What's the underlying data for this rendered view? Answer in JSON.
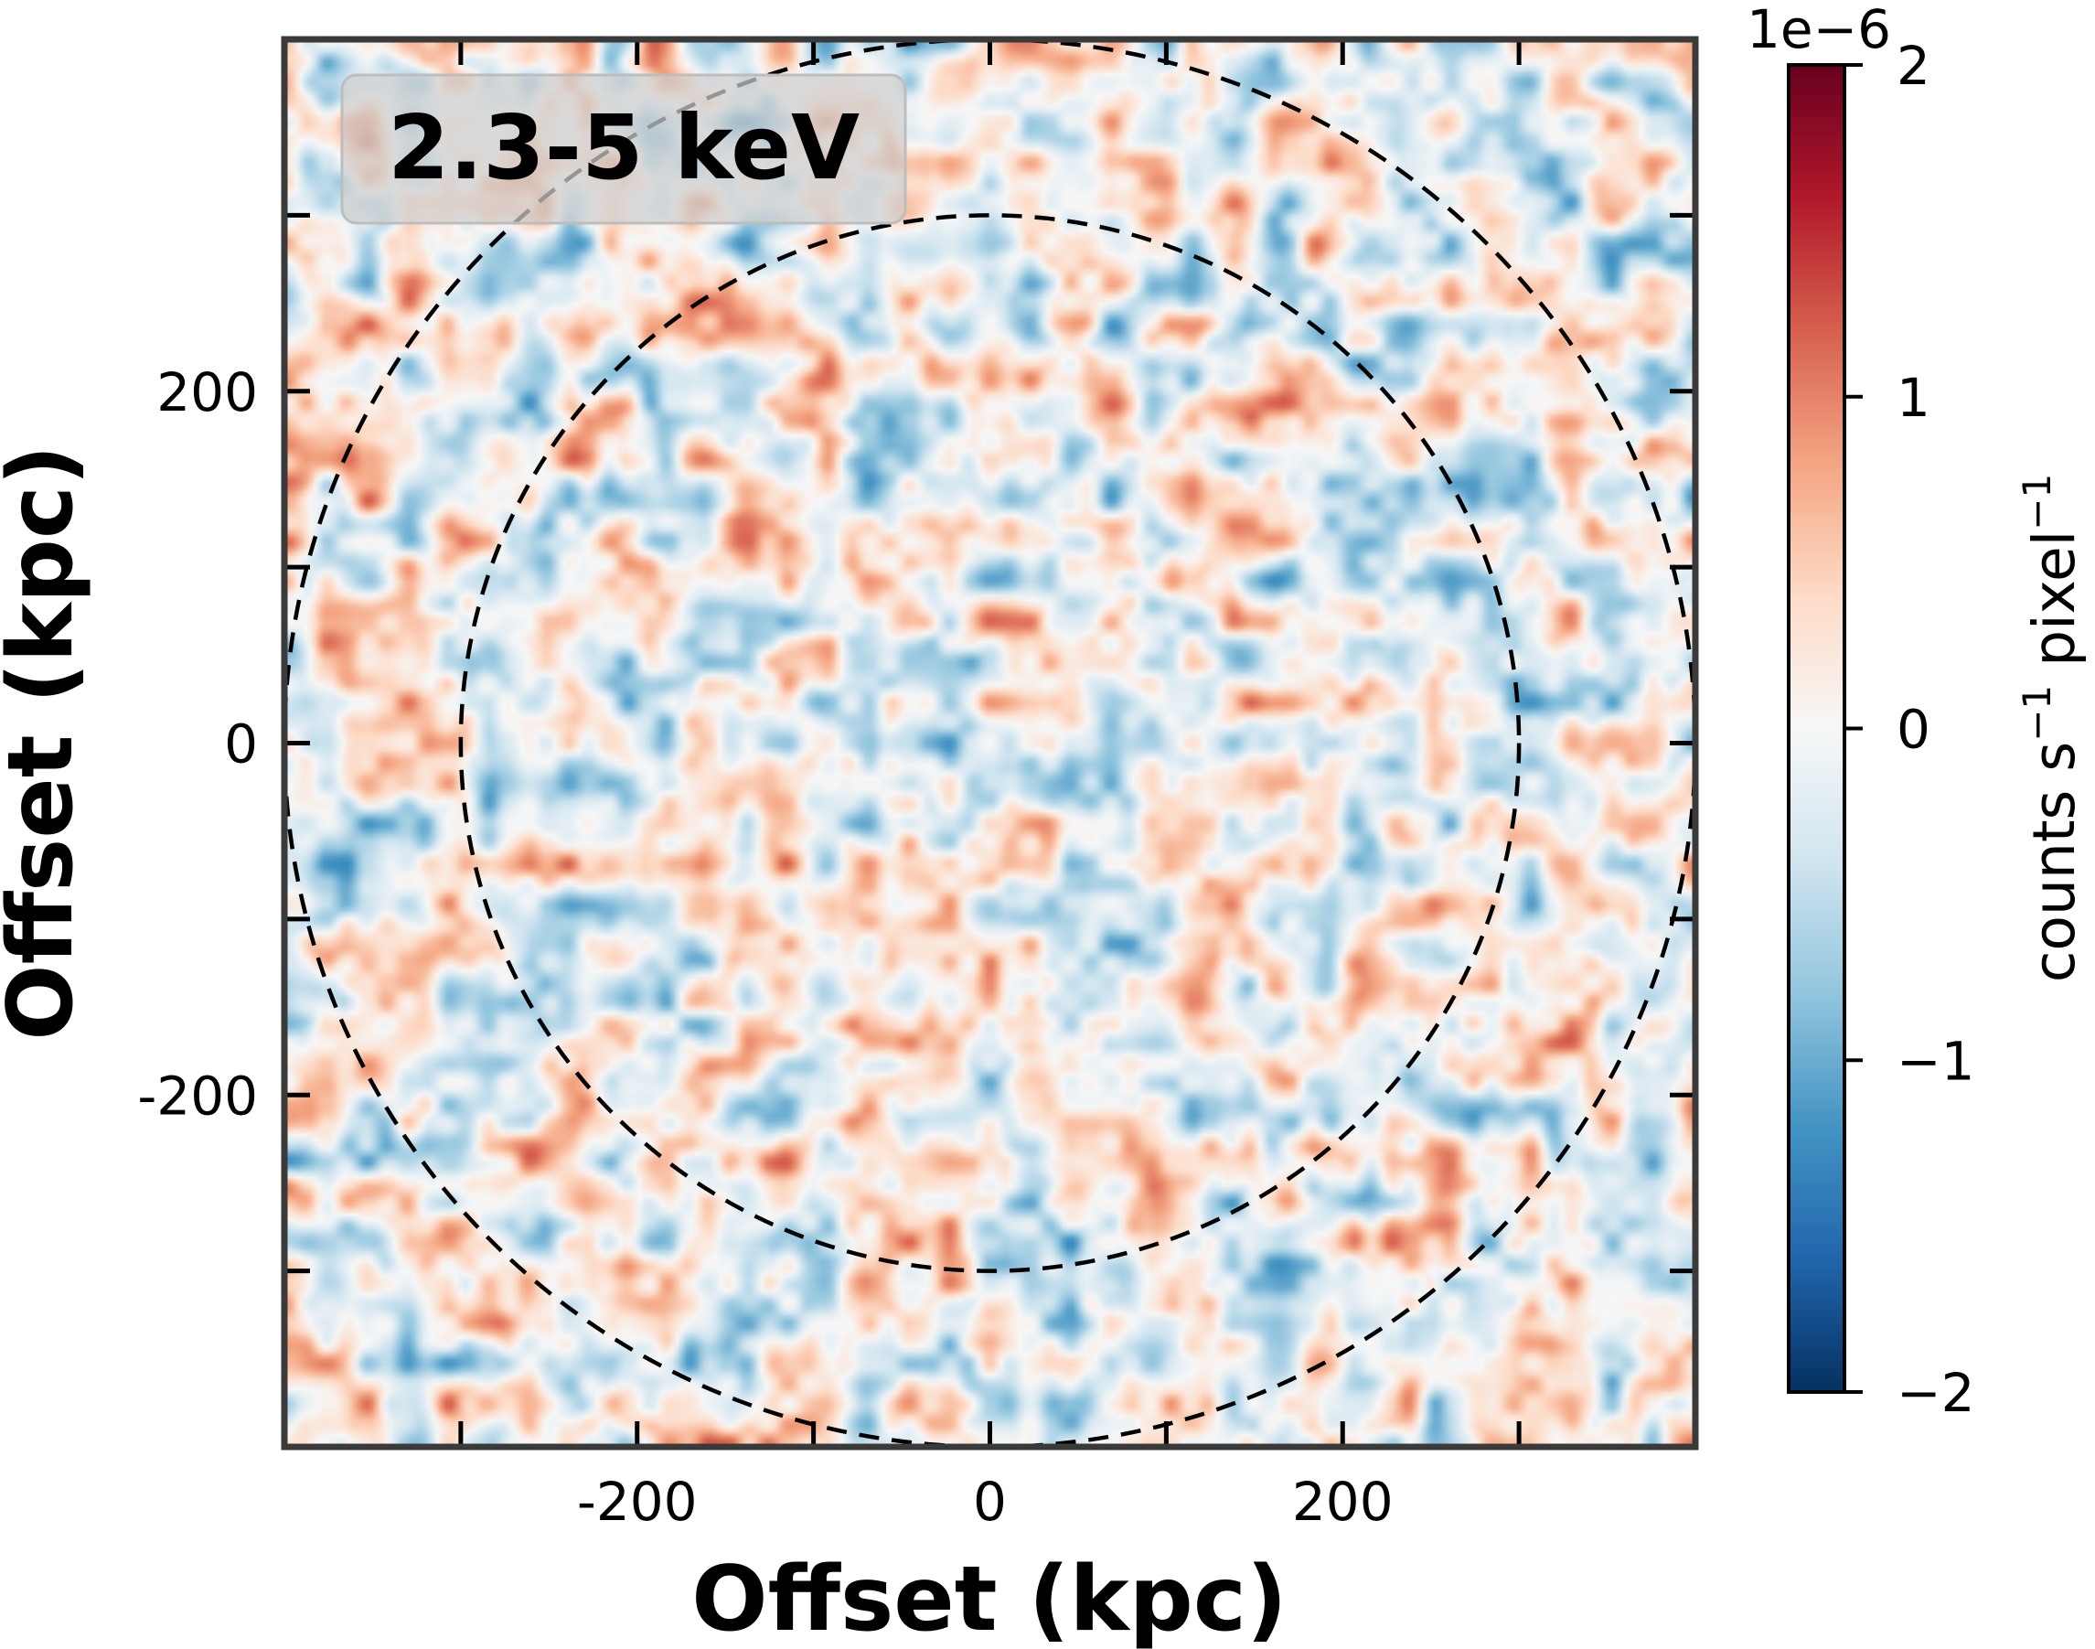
{
  "chart_data": {
    "type": "heatmap",
    "title": "",
    "annotation": "2.3-5 keV",
    "xlabel": "Offset (kpc)",
    "ylabel": "Offset (kpc)",
    "xlim": [
      -400,
      400
    ],
    "ylim": [
      -400,
      400
    ],
    "xticks": [
      -300,
      -200,
      -100,
      0,
      100,
      200,
      300
    ],
    "yticks": [
      -300,
      -200,
      -100,
      0,
      100,
      200,
      300
    ],
    "xtick_labels": [
      {
        "value": -200,
        "label": "-200"
      },
      {
        "value": 0,
        "label": "0"
      },
      {
        "value": 200,
        "label": "200"
      }
    ],
    "ytick_labels": [
      {
        "value": 200,
        "label": "200"
      },
      {
        "value": 0,
        "label": "0"
      },
      {
        "value": -200,
        "label": "-200"
      }
    ],
    "circles": [
      {
        "center": [
          0,
          0
        ],
        "radius": 300,
        "style": "dashed",
        "color": "#000000"
      },
      {
        "center": [
          0,
          0
        ],
        "radius": 400,
        "style": "dashed",
        "color": "#000000"
      }
    ],
    "colormap": "RdBu_r",
    "colormap_stops": [
      "#053061",
      "#2166ac",
      "#4393c3",
      "#92c5de",
      "#d1e5f0",
      "#f7f7f7",
      "#fddbc7",
      "#f4a582",
      "#d6604d",
      "#b2182b",
      "#67001f"
    ],
    "colorbar": {
      "label": "counts s$^{-1}$ pixel$^{-1}$",
      "label_parts": [
        "counts s",
        "−1",
        " pixel",
        "−1"
      ],
      "range": [
        -2,
        2
      ],
      "scale_label": "1e−6",
      "ticks": [
        {
          "value": 2,
          "label": "2"
        },
        {
          "value": 1,
          "label": "1"
        },
        {
          "value": 0,
          "label": "0"
        },
        {
          "value": -1,
          "label": "−1"
        },
        {
          "value": -2,
          "label": "−2"
        }
      ]
    },
    "field": {
      "description_values_units": "1e-6 counts s^-1 pixel^-1",
      "typical_range": [
        -1.6,
        1.6
      ],
      "seed": 7
    }
  }
}
